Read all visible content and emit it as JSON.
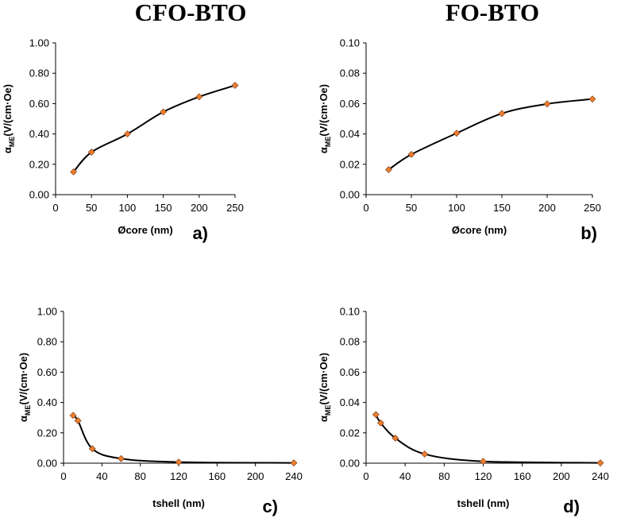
{
  "titles": {
    "left": "CFO-BTO",
    "right": "FO-BTO"
  },
  "chart_data": [
    {
      "id": "a",
      "type": "line",
      "panel_label": "a)",
      "xlabel": "Øcore (nm)",
      "ylabel": {
        "prefix": "α",
        "sub": "ME",
        "suffix": "(V/(cm·Oe)"
      },
      "xlim": [
        0,
        250
      ],
      "xticks": [
        0,
        50,
        100,
        150,
        200,
        250
      ],
      "ylim": [
        0,
        1.0
      ],
      "yticks": [
        0,
        0.2,
        0.4,
        0.6,
        0.8,
        1.0
      ],
      "ytick_labels": [
        "0.00",
        "0.20",
        "0.40",
        "0.60",
        "0.80",
        "1.00"
      ],
      "series": [
        {
          "name": "CFO-BTO",
          "x": [
            25,
            50,
            100,
            150,
            200,
            250
          ],
          "y": [
            0.15,
            0.28,
            0.4,
            0.545,
            0.645,
            0.72
          ]
        }
      ]
    },
    {
      "id": "b",
      "type": "line",
      "panel_label": "b)",
      "xlabel": "Øcore (nm)",
      "ylabel": {
        "prefix": "α",
        "sub": "ME",
        "suffix": "(V/(cm·Oe)"
      },
      "xlim": [
        0,
        250
      ],
      "xticks": [
        0,
        50,
        100,
        150,
        200,
        250
      ],
      "ylim": [
        0,
        0.1
      ],
      "yticks": [
        0,
        0.02,
        0.04,
        0.06,
        0.08,
        0.1
      ],
      "ytick_labels": [
        "0.00",
        "0.02",
        "0.04",
        "0.06",
        "0.08",
        "0.10"
      ],
      "series": [
        {
          "name": "FO-BTO",
          "x": [
            25,
            50,
            100,
            150,
            200,
            250
          ],
          "y": [
            0.0165,
            0.0265,
            0.0405,
            0.0535,
            0.0598,
            0.063
          ]
        }
      ]
    },
    {
      "id": "c",
      "type": "line",
      "panel_label": "c)",
      "xlabel": "tshell (nm)",
      "ylabel": {
        "prefix": "α",
        "sub": "ME",
        "suffix": "(V/(cm·Oe)"
      },
      "xlim": [
        0,
        240
      ],
      "xticks": [
        0,
        40,
        80,
        120,
        160,
        200,
        240
      ],
      "ylim": [
        0,
        1.0
      ],
      "yticks": [
        0,
        0.2,
        0.4,
        0.6,
        0.8,
        1.0
      ],
      "ytick_labels": [
        "0.00",
        "0.20",
        "0.40",
        "0.60",
        "0.80",
        "1.00"
      ],
      "series": [
        {
          "name": "CFO-BTO",
          "x": [
            10,
            15,
            30,
            60,
            120,
            240
          ],
          "y": [
            0.315,
            0.28,
            0.095,
            0.03,
            0.007,
            0.002
          ]
        }
      ]
    },
    {
      "id": "d",
      "type": "line",
      "panel_label": "d)",
      "xlabel": "tshell (nm)",
      "ylabel": {
        "prefix": "α",
        "sub": "ME",
        "suffix": "(V/(cm·Oe)"
      },
      "xlim": [
        0,
        240
      ],
      "xticks": [
        0,
        40,
        80,
        120,
        160,
        200,
        240
      ],
      "ylim": [
        0,
        0.1
      ],
      "yticks": [
        0,
        0.02,
        0.04,
        0.06,
        0.08,
        0.1
      ],
      "ytick_labels": [
        "0.00",
        "0.02",
        "0.04",
        "0.06",
        "0.08",
        "0.10"
      ],
      "series": [
        {
          "name": "FO-BTO",
          "x": [
            10,
            15,
            30,
            60,
            120,
            240
          ],
          "y": [
            0.032,
            0.0265,
            0.0165,
            0.006,
            0.0012,
            0.0002
          ]
        }
      ]
    }
  ]
}
